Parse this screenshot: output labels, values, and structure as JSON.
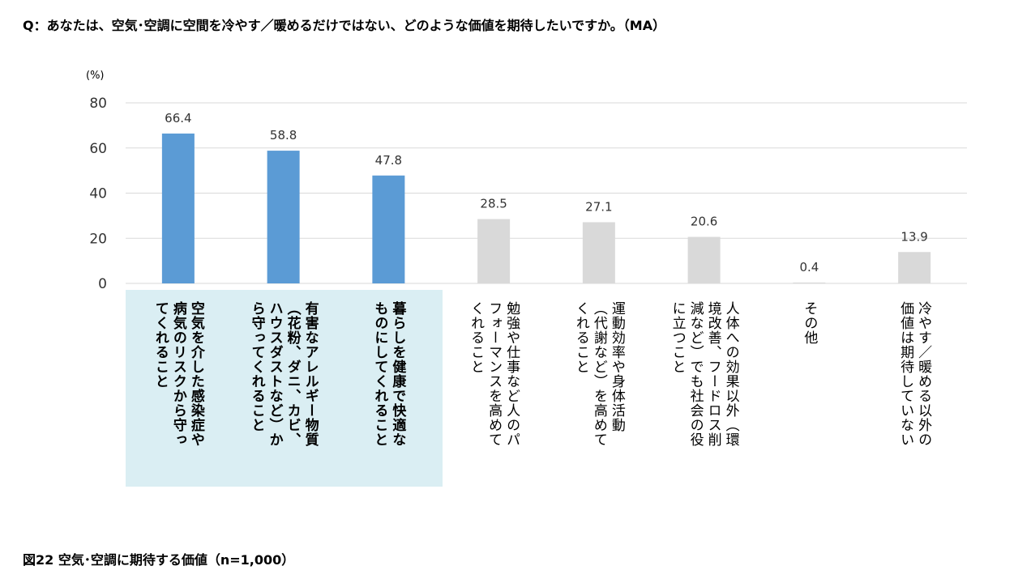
{
  "title": "Q：あなたは、空気･空調に空間を冷やす／暖めるだけではない、どのような価値を期待したいですか。（MA）",
  "caption": "図22  空気･空調に期待する価値（n=1,000）",
  "chart_data": {
    "type": "bar",
    "unit_label": "(%)",
    "ylim": [
      0,
      80
    ],
    "yticks": [
      0,
      20,
      40,
      60,
      80
    ],
    "grid": true,
    "categories": [
      [
        "空気を介した感染症や",
        "病気のリスクから守っ",
        "てくれること"
      ],
      [
        "有害なアレルギー物質",
        "（花粉、ダニ、カビ、",
        "ハウスダストなど）か",
        "ら守ってくれること"
      ],
      [
        "暮らしを健康で快適な",
        "ものにしてくれること"
      ],
      [
        "勉強や仕事など人のパ",
        "フォーマンスを高めて",
        "くれること"
      ],
      [
        "運動効率や身体活動",
        "（代謝など）を高めて",
        "くれること"
      ],
      [
        "人体への効果以外（環",
        "境改善、フードロス削",
        "減など）でも社会の役",
        "に立つこと"
      ],
      [
        "その他"
      ],
      [
        "冷やす／暖める以外の",
        "価値は期待していない"
      ]
    ],
    "values": [
      66.4,
      58.8,
      47.8,
      28.5,
      27.1,
      20.6,
      0.4,
      13.9
    ],
    "highlighted": [
      true,
      true,
      true,
      false,
      false,
      false,
      false,
      false
    ],
    "colors": {
      "highlight": "#5B9BD5",
      "normal": "#D9D9D9",
      "label_bg": "#DAEEF3",
      "grid": "#D9D9D9"
    }
  }
}
